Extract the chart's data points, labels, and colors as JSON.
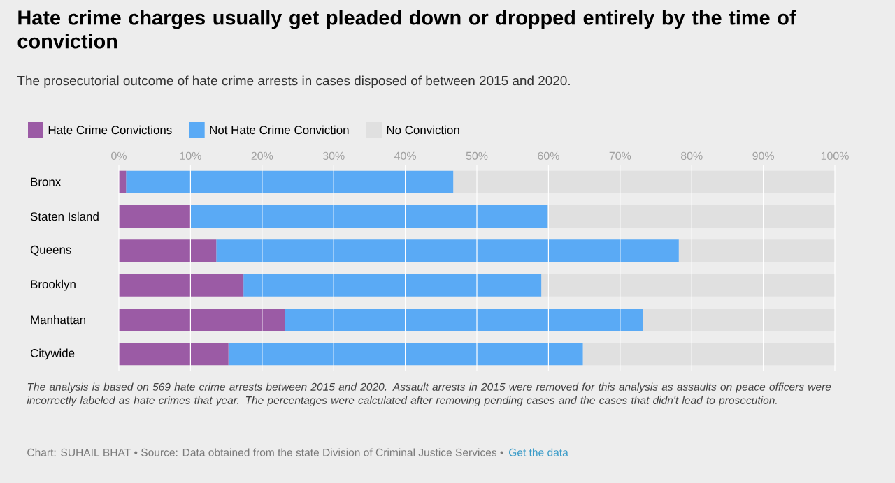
{
  "chart_data": {
    "type": "bar",
    "orientation": "horizontal",
    "stacked": true,
    "title": "Hate crime charges usually get pleaded down or dropped entirely by the time of conviction",
    "subtitle": "The prosecutorial outcome of hate crime arrests in cases disposed of between 2015 and 2020.",
    "categories": [
      "Bronx",
      "Staten Island",
      "Queens",
      "Brooklyn",
      "Manhattan",
      "Citywide"
    ],
    "series": [
      {
        "name": "Hate Crime Convictions",
        "color": "#9b5ba5",
        "values": [
          1,
          10,
          13.6,
          17.4,
          23.2,
          15.3
        ]
      },
      {
        "name": "Not Hate Crime Conviction",
        "color": "#5aaaf5",
        "values": [
          45.7,
          49.9,
          64.6,
          41.6,
          50,
          49.5
        ]
      },
      {
        "name": "No Conviction",
        "color": "#e0e0e0",
        "values": [
          53.3,
          40.1,
          21.8,
          41,
          26.8,
          35.2
        ]
      }
    ],
    "xlim": [
      0,
      100
    ],
    "xticks": [
      {
        "value": 0,
        "label": "0%"
      },
      {
        "value": 10,
        "label": "10%"
      },
      {
        "value": 20,
        "label": "20%"
      },
      {
        "value": 30,
        "label": "30%"
      },
      {
        "value": 40,
        "label": "40%"
      },
      {
        "value": 50,
        "label": "50%"
      },
      {
        "value": 60,
        "label": "60%"
      },
      {
        "value": 70,
        "label": "70%"
      },
      {
        "value": 80,
        "label": "80%"
      },
      {
        "value": 90,
        "label": "90%"
      },
      {
        "value": 100,
        "label": "100%"
      }
    ],
    "grid": "x",
    "legend": "top left",
    "annotations": [
      "The analysis is based on 569 hate crime arrests between 2015 and 2020. Assault arrests in 2015 were removed for this analysis as assaults on peace officers were incorrectly labeled as hate crimes that year. The percentages were calculated after removing pending cases and the cases that didn't lead to prosecution.",
      "Chart: SUHAIL BHAT • Source: Data obtained from the state Division of Criminal Justice Services •",
      "Get the data"
    ]
  }
}
